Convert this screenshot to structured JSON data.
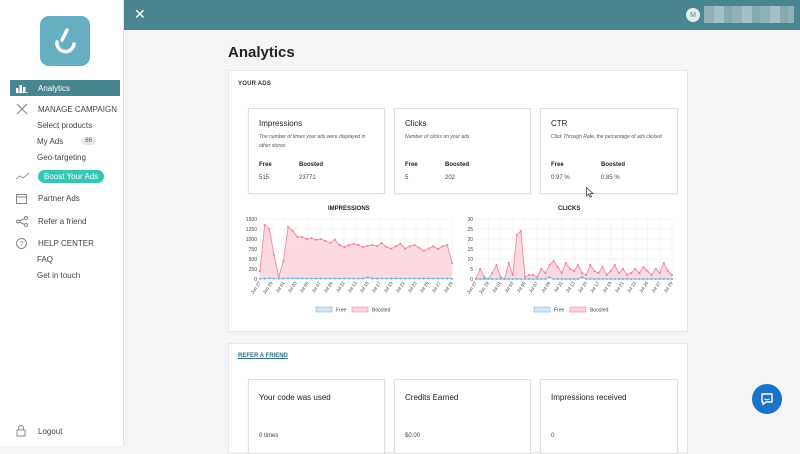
{
  "sidebar": {
    "items": [
      {
        "label": "Analytics",
        "icon": "bar-chart-icon"
      },
      {
        "label": "MANAGE CAMPAIGN",
        "icon": "tools-icon"
      },
      {
        "label": "Select products"
      },
      {
        "label": "My Ads",
        "badge": "66"
      },
      {
        "label": "Geo-targeting"
      },
      {
        "label": "Boost Your Ads",
        "icon": "trend-icon"
      },
      {
        "label": "Partner Ads",
        "icon": "calendar-icon"
      },
      {
        "label": "Refer a friend",
        "icon": "share-icon"
      },
      {
        "label": "HELP CENTER",
        "icon": "help-icon"
      },
      {
        "label": "FAQ"
      },
      {
        "label": "Get in touch"
      },
      {
        "label": "Logout",
        "icon": "lock-icon"
      }
    ]
  },
  "topbar": {
    "avatar_initial": "M"
  },
  "page": {
    "title": "Analytics"
  },
  "your_ads": {
    "section_title": "YOUR ADS",
    "cards": [
      {
        "title": "Impressions",
        "desc": "The number of times your ads were displayed in other stores",
        "free_label": "Free",
        "boosted_label": "Boosted",
        "free": "515",
        "boosted": "23771"
      },
      {
        "title": "Clicks",
        "desc": "Number of clicks on your ads",
        "free_label": "Free",
        "boosted_label": "Boosted",
        "free": "5",
        "boosted": "202"
      },
      {
        "title": "CTR",
        "desc": "Click Through Rate, the percentage of ads clicked",
        "free_label": "Free",
        "boosted_label": "Boosted",
        "free": "0.97 %",
        "boosted": "0.85 %"
      }
    ]
  },
  "refer": {
    "section_title": "REFER A FRIEND",
    "cards": [
      {
        "title": "Your code was used",
        "value": "0 times"
      },
      {
        "title": "Credits Earned",
        "value": "$0.00"
      },
      {
        "title": "Impressions received",
        "value": "0"
      }
    ]
  },
  "colors": {
    "accent": "#4a8690",
    "boost": "#35c7b4",
    "boosted": "#f49ab0",
    "free": "#8cc4ea"
  },
  "chart_data": [
    {
      "type": "area",
      "title": "IMPRESSIONS",
      "ylim": [
        0,
        1500
      ],
      "yticks": [
        "0",
        "250",
        "500",
        "750",
        "1000",
        "1250",
        "1500"
      ],
      "xticks": [
        "Jun 27",
        "Jun 29",
        "Jul 01",
        "Jul 03",
        "Jul 05",
        "Jul 07",
        "Jul 09",
        "Jul 11",
        "Jul 13",
        "Jul 15",
        "Jul 17",
        "Jul 19",
        "Jul 21",
        "Jul 23",
        "Jul 25",
        "Jul 27",
        "Jul 29"
      ],
      "legend": [
        "Free",
        "Boosted"
      ],
      "series": [
        {
          "name": "Boosted",
          "values": [
            200,
            1350,
            1250,
            600,
            50,
            450,
            1300,
            1200,
            1050,
            1050,
            1000,
            1020,
            980,
            1000,
            950,
            900,
            980,
            850,
            800,
            850,
            880,
            850,
            800,
            830,
            850,
            820,
            900,
            800,
            760,
            820,
            880,
            760,
            820,
            850,
            780,
            700,
            760,
            820,
            750,
            820,
            850,
            400
          ]
        },
        {
          "name": "Free",
          "values": [
            5,
            10,
            15,
            10,
            5,
            10,
            15,
            15,
            12,
            12,
            10,
            12,
            10,
            12,
            10,
            10,
            12,
            10,
            10,
            12,
            10,
            10,
            12,
            40,
            12,
            10,
            12,
            10,
            10,
            12,
            10,
            10,
            12,
            10,
            10,
            10,
            12,
            10,
            10,
            12,
            10,
            5
          ]
        }
      ]
    },
    {
      "type": "area",
      "title": "CLICKS",
      "ylim": [
        0,
        30
      ],
      "yticks": [
        "0",
        "5",
        "10",
        "15",
        "20",
        "25",
        "30"
      ],
      "xticks": [
        "Jun 27",
        "Jun 29",
        "Jul 01",
        "Jul 03",
        "Jul 05",
        "Jul 07",
        "Jul 09",
        "Jul 11",
        "Jul 13",
        "Jul 15",
        "Jul 17",
        "Jul 19",
        "Jul 21",
        "Jul 23",
        "Jul 25",
        "Jul 27",
        "Jul 29"
      ],
      "legend": [
        "Free",
        "Boosted"
      ],
      "series": [
        {
          "name": "Boosted",
          "values": [
            0,
            5,
            1,
            0,
            3,
            7,
            1,
            0,
            8,
            2,
            22,
            24,
            1,
            2,
            2,
            1,
            5,
            3,
            7,
            9,
            6,
            3,
            8,
            5,
            4,
            7,
            3,
            2,
            7,
            4,
            3,
            6,
            2,
            4,
            7,
            3,
            5,
            2,
            3,
            5,
            3,
            6,
            4,
            2,
            5,
            3,
            8,
            4,
            2
          ]
        },
        {
          "name": "Free",
          "values": [
            0,
            0,
            0,
            0,
            0,
            0,
            0,
            0,
            0,
            0,
            0,
            0,
            0,
            0,
            0,
            0,
            0,
            0,
            1,
            0,
            0,
            0,
            0,
            0,
            0,
            0,
            1,
            0,
            0,
            0,
            0,
            0,
            0,
            0,
            0,
            0,
            0,
            0,
            0,
            0,
            0,
            0,
            0,
            0,
            0,
            0,
            0,
            0,
            0
          ]
        }
      ]
    }
  ]
}
